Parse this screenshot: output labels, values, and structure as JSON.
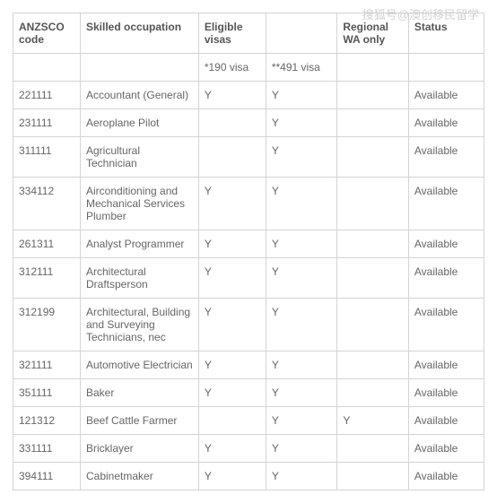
{
  "watermark": "搜狐号@澳创移民留学",
  "headers": {
    "code": "ANZSCO code",
    "occupation": "Skilled occupation",
    "eligible_visas": "Eligible visas",
    "eligible_blank": "",
    "regional": "Regional WA only",
    "status": "Status"
  },
  "subheaders": {
    "code": "",
    "occupation": "",
    "visa190": "*190 visa",
    "visa491": "**491 visa",
    "regional": "",
    "status": ""
  },
  "rows": [
    {
      "code": "221111",
      "occupation": "Accountant (General)",
      "v190": "Y",
      "v491": "Y",
      "regional": "",
      "status": "Available"
    },
    {
      "code": "231111",
      "occupation": "Aeroplane Pilot",
      "v190": "",
      "v491": "Y",
      "regional": "",
      "status": "Available"
    },
    {
      "code": "311111",
      "occupation": "Agricultural Technician",
      "v190": "",
      "v491": "Y",
      "regional": "",
      "status": "Available"
    },
    {
      "code": "334112",
      "occupation": "Airconditioning and Mechanical Services Plumber",
      "v190": "Y",
      "v491": "Y",
      "regional": "",
      "status": "Available"
    },
    {
      "code": "261311",
      "occupation": "Analyst Programmer",
      "v190": "Y",
      "v491": "Y",
      "regional": "",
      "status": "Available"
    },
    {
      "code": "312111",
      "occupation": "Architectural Draftsperson",
      "v190": "Y",
      "v491": "Y",
      "regional": "",
      "status": "Available"
    },
    {
      "code": "312199",
      "occupation": "Architectural, Building and Surveying Technicians, nec",
      "v190": "Y",
      "v491": "Y",
      "regional": "",
      "status": "Available"
    },
    {
      "code": "321111",
      "occupation": "Automotive Electrician",
      "v190": "Y",
      "v491": "Y",
      "regional": "",
      "status": "Available"
    },
    {
      "code": "351111",
      "occupation": "Baker",
      "v190": "Y",
      "v491": "Y",
      "regional": "",
      "status": "Available"
    },
    {
      "code": "121312",
      "occupation": "Beef Cattle Farmer",
      "v190": "",
      "v491": "Y",
      "regional": "Y",
      "status": "Available"
    },
    {
      "code": "331111",
      "occupation": "Bricklayer",
      "v190": "Y",
      "v491": "Y",
      "regional": "",
      "status": "Available"
    },
    {
      "code": "394111",
      "occupation": "Cabinetmaker",
      "v190": "Y",
      "v491": "Y",
      "regional": "",
      "status": "Available"
    }
  ]
}
